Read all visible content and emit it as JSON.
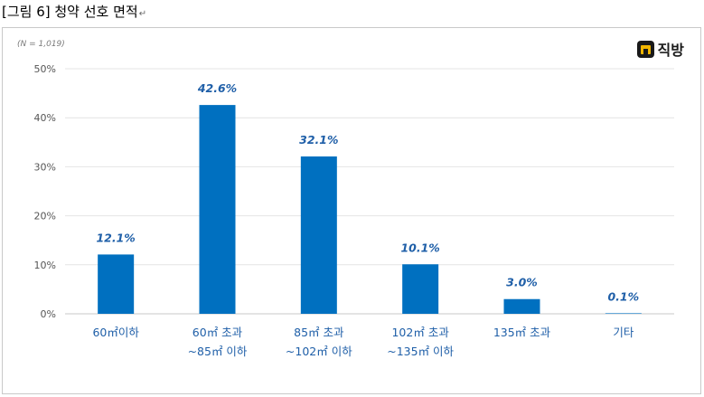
{
  "caption": "[그림 6] 청약 선호 면적",
  "caption_mark": "↵",
  "note": "(N = 1,019)",
  "logo_text": "직방",
  "colors": {
    "bar": "#0070c0",
    "label": "#1f5fa8",
    "grid": "#e4e4e4"
  },
  "chart_data": {
    "type": "bar",
    "title": "",
    "xlabel": "",
    "ylabel": "",
    "ylim": [
      0,
      50
    ],
    "yticks": [
      "0%",
      "10%",
      "20%",
      "30%",
      "40%",
      "50%"
    ],
    "ytick_values": [
      0,
      10,
      20,
      30,
      40,
      50
    ],
    "grid": true,
    "categories": [
      [
        "60㎡이하"
      ],
      [
        "60㎡ 초과",
        "~85㎡ 이하"
      ],
      [
        "85㎡ 초과",
        "~102㎡ 이하"
      ],
      [
        "102㎡ 초과",
        "~135㎡ 이하"
      ],
      [
        "135㎡ 초과"
      ],
      [
        "기타"
      ]
    ],
    "values": [
      12.1,
      42.6,
      32.1,
      10.1,
      3.0,
      0.1
    ],
    "data_labels": [
      "12.1%",
      "42.6%",
      "32.1%",
      "10.1%",
      "3.0%",
      "0.1%"
    ]
  }
}
